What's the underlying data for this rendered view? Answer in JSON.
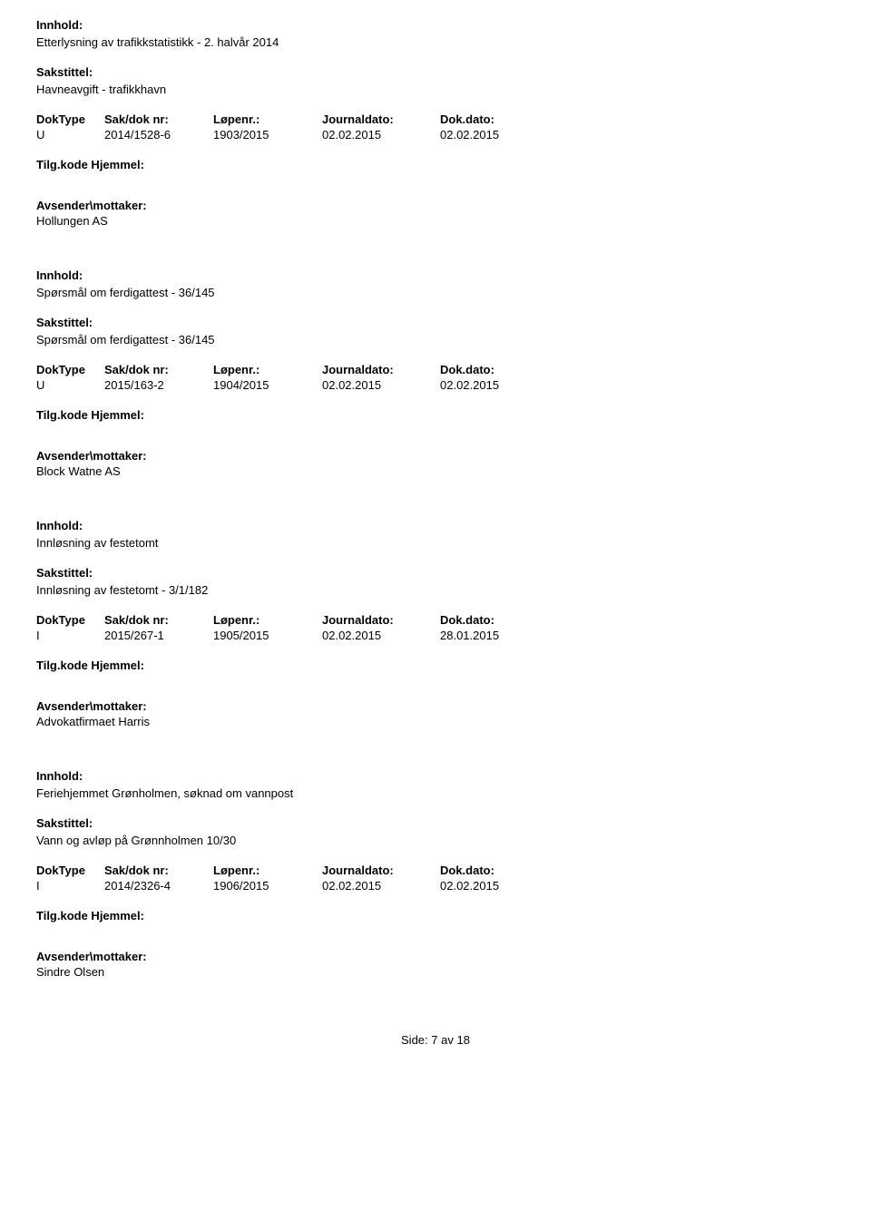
{
  "labels": {
    "innhold": "Innhold:",
    "sakstittel": "Sakstittel:",
    "doktype": "DokType",
    "sakdoknr": "Sak/dok nr:",
    "lopenr": "Løpenr.:",
    "journaldato": "Journaldato:",
    "dokdato": "Dok.dato:",
    "tilgkode": "Tilg.kode Hjemmel:",
    "avsender": "Avsender\\mottaker:"
  },
  "records": [
    {
      "innhold": "Etterlysning av trafikkstatistikk - 2. halvår 2014",
      "sakstittel": "Havneavgift - trafikkhavn",
      "doktype": "U",
      "sakdoknr": "2014/1528-6",
      "lopenr": "1903/2015",
      "journaldato": "02.02.2015",
      "dokdato": "02.02.2015",
      "avsender": "Hollungen AS"
    },
    {
      "innhold": "Spørsmål om ferdigattest - 36/145",
      "sakstittel": "Spørsmål om ferdigattest - 36/145",
      "doktype": "U",
      "sakdoknr": "2015/163-2",
      "lopenr": "1904/2015",
      "journaldato": "02.02.2015",
      "dokdato": "02.02.2015",
      "avsender": "Block Watne AS"
    },
    {
      "innhold": "Innløsning av festetomt",
      "sakstittel": "Innløsning av festetomt - 3/1/182",
      "doktype": "I",
      "sakdoknr": "2015/267-1",
      "lopenr": "1905/2015",
      "journaldato": "02.02.2015",
      "dokdato": "28.01.2015",
      "avsender": "Advokatfirmaet Harris"
    },
    {
      "innhold": "Feriehjemmet Grønholmen, søknad om vannpost",
      "sakstittel": "Vann og avløp på Grønnholmen 10/30",
      "doktype": "I",
      "sakdoknr": "2014/2326-4",
      "lopenr": "1906/2015",
      "journaldato": "02.02.2015",
      "dokdato": "02.02.2015",
      "avsender": "Sindre Olsen"
    }
  ],
  "footer": {
    "prefix": "Side:",
    "current": "7",
    "separator": "av",
    "total": "18"
  }
}
